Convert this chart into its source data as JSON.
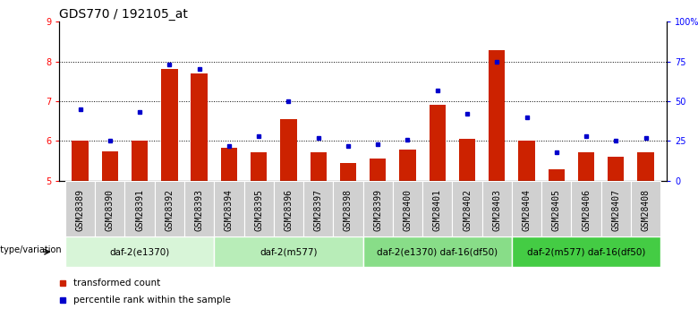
{
  "title": "GDS770 / 192105_at",
  "samples": [
    "GSM28389",
    "GSM28390",
    "GSM28391",
    "GSM28392",
    "GSM28393",
    "GSM28394",
    "GSM28395",
    "GSM28396",
    "GSM28397",
    "GSM28398",
    "GSM28399",
    "GSM28400",
    "GSM28401",
    "GSM28402",
    "GSM28403",
    "GSM28404",
    "GSM28405",
    "GSM28406",
    "GSM28407",
    "GSM28408"
  ],
  "bar_values": [
    6.0,
    5.75,
    6.0,
    7.8,
    7.7,
    5.82,
    5.72,
    6.55,
    5.72,
    5.45,
    5.55,
    5.78,
    6.9,
    6.05,
    8.28,
    6.0,
    5.28,
    5.72,
    5.6,
    5.72
  ],
  "percentile_values": [
    45,
    25,
    43,
    73,
    70,
    22,
    28,
    50,
    27,
    22,
    23,
    26,
    57,
    42,
    75,
    40,
    18,
    28,
    25,
    27
  ],
  "bar_color": "#cc2200",
  "dot_color": "#0000cc",
  "ylim_left": [
    5,
    9
  ],
  "ylim_right": [
    0,
    100
  ],
  "yticks_left": [
    5,
    6,
    7,
    8,
    9
  ],
  "yticks_right": [
    0,
    25,
    50,
    75,
    100
  ],
  "yticklabels_right": [
    "0",
    "25",
    "50",
    "75",
    "100%"
  ],
  "groups": [
    {
      "label": "daf-2(e1370)",
      "start": 0,
      "end": 5,
      "color": "#d8f5d8"
    },
    {
      "label": "daf-2(m577)",
      "start": 5,
      "end": 10,
      "color": "#b8edb8"
    },
    {
      "label": "daf-2(e1370) daf-16(df50)",
      "start": 10,
      "end": 15,
      "color": "#88dd88"
    },
    {
      "label": "daf-2(m577) daf-16(df50)",
      "start": 15,
      "end": 20,
      "color": "#44cc44"
    }
  ],
  "genotype_label": "genotype/variation",
  "legend_bar_label": "transformed count",
  "legend_dot_label": "percentile rank within the sample",
  "grid_color": "#000000",
  "title_fontsize": 10,
  "tick_fontsize": 7,
  "sample_label_fontsize": 7
}
